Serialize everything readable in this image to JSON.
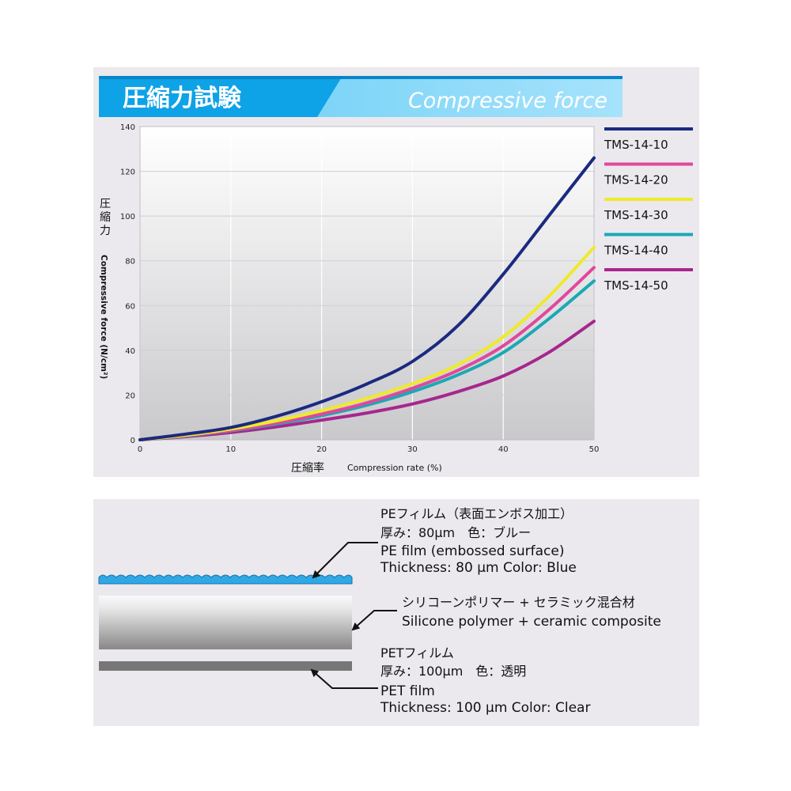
{
  "header": {
    "title_jp": "圧縮力試験",
    "title_en": "Compressive force"
  },
  "chart_data": {
    "type": "line",
    "title": "圧縮力試験 Compressive force",
    "xlabel_jp": "圧縮率",
    "xlabel_en": "Compression rate (%)",
    "ylabel_jp": "圧縮力",
    "ylabel_en": "Compressive force (N/cm²)",
    "xlim": [
      0,
      50
    ],
    "ylim": [
      0,
      140
    ],
    "xticks": [
      0,
      10,
      20,
      30,
      40,
      50
    ],
    "yticks": [
      0,
      20,
      40,
      60,
      80,
      100,
      120,
      140
    ],
    "grid": true,
    "legend_position": "right",
    "x": [
      0,
      5,
      10,
      15,
      20,
      25,
      30,
      35,
      40,
      45,
      50
    ],
    "series": [
      {
        "name": "TMS-14-10",
        "color": "#1b2a80",
        "values": [
          0,
          2.5,
          5.5,
          10.5,
          17,
          25,
          35,
          51,
          74,
          100,
          126
        ]
      },
      {
        "name": "TMS-14-20",
        "color": "#e0489b",
        "values": [
          0,
          1.8,
          4.2,
          7.5,
          11.5,
          16.5,
          23,
          31,
          42,
          58,
          77
        ]
      },
      {
        "name": "TMS-14-30",
        "color": "#eeea2c",
        "values": [
          0,
          2.0,
          4.8,
          8.5,
          13,
          18.5,
          25,
          33.5,
          46,
          64,
          86
        ]
      },
      {
        "name": "TMS-14-40",
        "color": "#1aa9b5",
        "values": [
          0,
          1.7,
          4.0,
          7.0,
          10.8,
          15.5,
          21.5,
          29,
          39,
          54,
          71
        ]
      },
      {
        "name": "TMS-14-50",
        "color": "#a6278d",
        "values": [
          0,
          1.4,
          3.3,
          5.8,
          8.8,
          12,
          16,
          21.5,
          28.5,
          39,
          53
        ]
      }
    ]
  },
  "layers": {
    "pe_label_jp_1": "PEフィルム（表面エンボス加工）",
    "pe_label_jp_2": "厚み：80μm　色：ブルー",
    "pe_label_en_1": "PE film (embossed surface)",
    "pe_label_en_2": "Thickness: 80 µm  Color: Blue",
    "silicone_label_jp": "シリコーンポリマー + セラミック混合材",
    "silicone_label_en": "Silicone polymer + ceramic composite",
    "pet_label_jp_1": "PETフィルム",
    "pet_label_jp_2": "厚み：100μm　色：透明",
    "pet_label_en_1": "PET film",
    "pet_label_en_2": "Thickness: 100 µm  Color: Clear"
  }
}
